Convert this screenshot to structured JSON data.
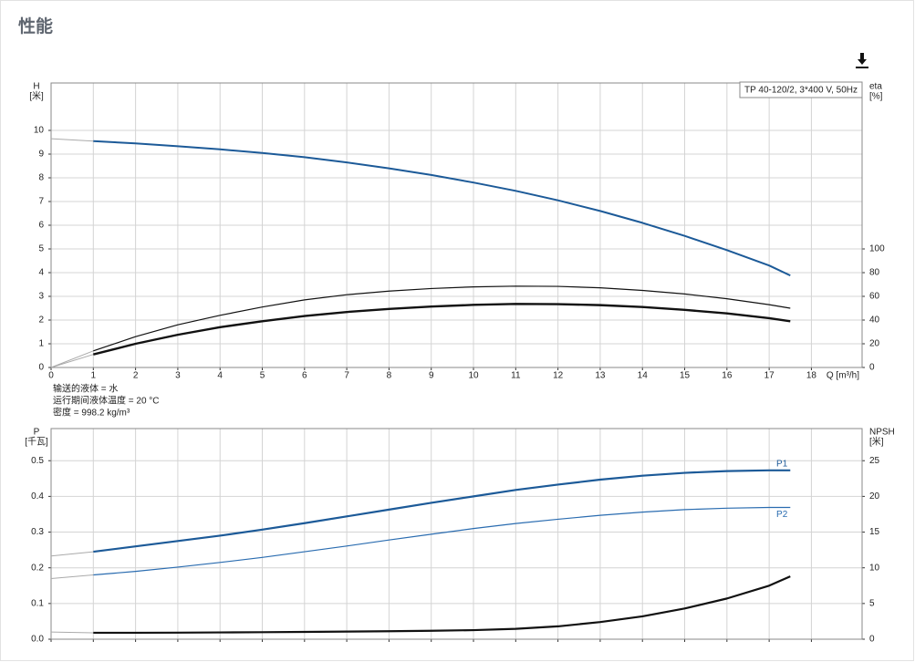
{
  "title": "性能",
  "chart_data": [
    {
      "type": "line",
      "info_box": "TP 40-120/2, 3*400 V, 50Hz",
      "y_label": "H",
      "y_unit": "[米]",
      "y2_label": "eta",
      "y2_unit": "[%]",
      "x_label": "Q [m³/h]",
      "annotations": [
        "输送的液体 = 水",
        "运行期间液体温度 = 20 °C",
        "密度 = 998.2 kg/m³"
      ],
      "xlim": [
        0,
        19.2
      ],
      "xticks": [
        0,
        1,
        2,
        3,
        4,
        5,
        6,
        7,
        8,
        9,
        10,
        11,
        12,
        13,
        14,
        15,
        16,
        17,
        18
      ],
      "xtick_labels": true,
      "ylim": [
        0,
        12
      ],
      "yticks": [
        0,
        1,
        2,
        3,
        4,
        5,
        6,
        7,
        8,
        9,
        10
      ],
      "y2lim": [
        0,
        240
      ],
      "y2ticks": [
        0,
        20,
        40,
        60,
        80,
        100
      ],
      "grid": true,
      "series": [
        {
          "color": "#aaaaaa",
          "width": 1,
          "x": [
            0,
            1
          ],
          "values": [
            9.65,
            9.55
          ]
        },
        {
          "color": "#1c5a98",
          "width": 2,
          "x": [
            1,
            2,
            3,
            4,
            5,
            6,
            7,
            8,
            9,
            10,
            11,
            12,
            13,
            14,
            15,
            16,
            17,
            17.5
          ],
          "values": [
            9.55,
            9.45,
            9.33,
            9.2,
            9.05,
            8.87,
            8.65,
            8.4,
            8.12,
            7.8,
            7.45,
            7.05,
            6.6,
            6.1,
            5.55,
            4.95,
            4.3,
            3.88
          ]
        },
        {
          "color": "#aaaaaa",
          "width": 1,
          "axis": "y2",
          "x": [
            0,
            1
          ],
          "values": [
            0,
            14
          ]
        },
        {
          "color": "#aaaaaa",
          "width": 1,
          "axis": "y2",
          "x": [
            0,
            1
          ],
          "values": [
            0,
            11
          ]
        },
        {
          "color": "#111111",
          "width": 1.2,
          "axis": "y2",
          "x": [
            1,
            2,
            3,
            4,
            5,
            6,
            7,
            8,
            9,
            10,
            11,
            12,
            13,
            14,
            15,
            16,
            17,
            17.5
          ],
          "values": [
            14,
            26,
            36,
            44,
            51,
            57,
            61.4,
            64.4,
            66.6,
            68,
            68.6,
            68.4,
            67.2,
            65,
            62,
            58,
            53,
            50
          ]
        },
        {
          "color": "#111111",
          "width": 2.4,
          "axis": "y2",
          "x": [
            1,
            2,
            3,
            4,
            5,
            6,
            7,
            8,
            9,
            10,
            11,
            12,
            13,
            14,
            15,
            16,
            17,
            17.5
          ],
          "values": [
            11,
            20,
            27.6,
            34,
            39,
            43.4,
            46.8,
            49.4,
            51.4,
            52.8,
            53.6,
            53.4,
            52.6,
            51,
            48.6,
            45.6,
            41.6,
            39
          ]
        }
      ]
    },
    {
      "type": "line",
      "y_label": "P",
      "y_unit": "[千瓦]",
      "y2_label": "NPSH",
      "y2_unit": "[米]",
      "xlim": [
        0,
        19.2
      ],
      "xticks": [
        0,
        1,
        2,
        3,
        4,
        5,
        6,
        7,
        8,
        9,
        10,
        11,
        12,
        13,
        14,
        15,
        16,
        17,
        18
      ],
      "xtick_labels": false,
      "ylim": [
        0,
        0.59
      ],
      "yticks": [
        {
          "value": 0,
          "label": "0.0"
        },
        0.1,
        0.2,
        0.3,
        0.4,
        0.5
      ],
      "y2lim": [
        0,
        29.5
      ],
      "y2ticks": [
        0,
        5,
        10,
        15,
        20,
        25
      ],
      "grid": true,
      "series": [
        {
          "name": "P1",
          "color": "#1c5a98",
          "width": 2.2,
          "x": [
            1,
            2,
            3,
            4,
            5,
            6,
            7,
            8,
            9,
            10,
            11,
            12,
            13,
            14,
            15,
            16,
            17,
            17.5
          ],
          "values": [
            0.245,
            0.26,
            0.275,
            0.29,
            0.307,
            0.325,
            0.344,
            0.363,
            0.382,
            0.4,
            0.418,
            0.433,
            0.447,
            0.458,
            0.466,
            0.471,
            0.473,
            0.473
          ]
        },
        {
          "name": "P2",
          "color": "#2a6cb0",
          "width": 1.2,
          "x": [
            1,
            2,
            3,
            4,
            5,
            6,
            7,
            8,
            9,
            10,
            11,
            12,
            13,
            14,
            15,
            16,
            17,
            17.5
          ],
          "values": [
            0.18,
            0.19,
            0.202,
            0.215,
            0.229,
            0.245,
            0.261,
            0.278,
            0.294,
            0.31,
            0.324,
            0.336,
            0.347,
            0.356,
            0.363,
            0.367,
            0.369,
            0.369
          ]
        },
        {
          "color": "#aaaaaa",
          "width": 1,
          "x": [
            0,
            1
          ],
          "values": [
            0.233,
            0.245
          ]
        },
        {
          "color": "#aaaaaa",
          "width": 1,
          "x": [
            0,
            1
          ],
          "values": [
            0.17,
            0.18
          ]
        },
        {
          "color": "#aaaaaa",
          "width": 1,
          "axis": "y2",
          "x": [
            0,
            1
          ],
          "values": [
            1.0,
            0.9
          ]
        },
        {
          "color": "#111111",
          "width": 2.2,
          "axis": "y2",
          "x": [
            1,
            2,
            3,
            4,
            5,
            6,
            7,
            8,
            9,
            10,
            11,
            12,
            13,
            14,
            15,
            16,
            17,
            17.5
          ],
          "values": [
            0.9,
            0.9,
            0.92,
            0.95,
            0.98,
            1.02,
            1.07,
            1.12,
            1.18,
            1.27,
            1.45,
            1.8,
            2.4,
            3.2,
            4.3,
            5.7,
            7.5,
            8.8
          ]
        }
      ]
    }
  ]
}
